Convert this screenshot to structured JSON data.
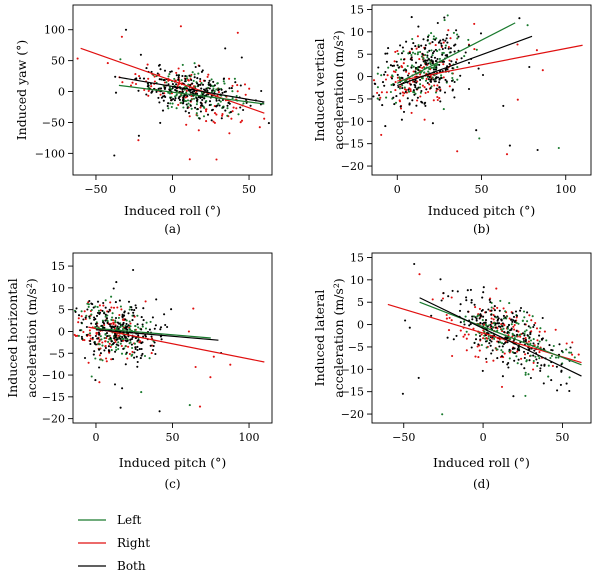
{
  "colors": {
    "Left": "#1a7a2e",
    "Right": "#e01010",
    "Both": "#000000"
  },
  "legend": [
    {
      "name": "Left",
      "color": "#1a7a2e"
    },
    {
      "name": "Right",
      "color": "#e01010"
    },
    {
      "name": "Both",
      "color": "#000000"
    }
  ],
  "chart_data": [
    {
      "type": "scatter",
      "panel": "(a)",
      "xlabel": "Induced roll (°)",
      "ylabel_lines": [
        "Induced yaw (°)"
      ],
      "xlim": [
        -65,
        65
      ],
      "ylim": [
        -135,
        140
      ],
      "xticks": [
        -50,
        0,
        50
      ],
      "yticks": [
        -100,
        -50,
        0,
        50,
        100
      ],
      "series": [
        {
          "name": "Left",
          "fit": [
            [
              -35,
              10
            ],
            [
              60,
              -20
            ]
          ],
          "cloud": {
            "cx": 15,
            "cy": -4,
            "sx": 15,
            "sy": 15,
            "slope": -0.3,
            "n": 140,
            "out": 4
          }
        },
        {
          "name": "Right",
          "fit": [
            [
              -60,
              70
            ],
            [
              60,
              -35
            ]
          ],
          "cloud": {
            "cx": 8,
            "cy": 4,
            "sx": 20,
            "sy": 20,
            "slope": -0.6,
            "n": 130,
            "out": 10
          }
        },
        {
          "name": "Both",
          "fit": [
            [
              -35,
              23
            ],
            [
              60,
              -17
            ]
          ],
          "cloud": {
            "cx": 12,
            "cy": 0,
            "sx": 17,
            "sy": 17,
            "slope": -0.4,
            "n": 230,
            "out": 8
          }
        }
      ]
    },
    {
      "type": "scatter",
      "panel": "(b)",
      "xlabel": "Induced pitch (°)",
      "ylabel_lines": [
        "Induced vertical",
        "acceleration (m/s²)"
      ],
      "xlim": [
        -15,
        115
      ],
      "ylim": [
        -22,
        16
      ],
      "xticks": [
        0,
        50,
        100
      ],
      "yticks": [
        -20,
        -15,
        -10,
        -5,
        0,
        5,
        10,
        15
      ],
      "series": [
        {
          "name": "Left",
          "fit": [
            [
              0,
              -1.5
            ],
            [
              70,
              12
            ]
          ],
          "cloud": {
            "cx": 15,
            "cy": 2,
            "sx": 12,
            "sy": 3.5,
            "slope": 0.15,
            "n": 140,
            "out": 4
          }
        },
        {
          "name": "Right",
          "fit": [
            [
              0,
              -1
            ],
            [
              110,
              7
            ]
          ],
          "cloud": {
            "cx": 12,
            "cy": 0.5,
            "sx": 12,
            "sy": 4,
            "slope": 0.07,
            "n": 130,
            "out": 8
          }
        },
        {
          "name": "Both",
          "fit": [
            [
              0,
              -2
            ],
            [
              80,
              9
            ]
          ],
          "cloud": {
            "cx": 15,
            "cy": 1.5,
            "sx": 14,
            "sy": 4,
            "slope": 0.12,
            "n": 230,
            "out": 8
          }
        }
      ]
    },
    {
      "type": "scatter",
      "panel": "(c)",
      "xlabel": "Induced pitch (°)",
      "ylabel_lines": [
        "Induced horizontal",
        "acceleration (m/s²)"
      ],
      "xlim": [
        -15,
        115
      ],
      "ylim": [
        -21,
        18
      ],
      "xticks": [
        0,
        50,
        100
      ],
      "yticks": [
        -20,
        -15,
        -10,
        -5,
        0,
        5,
        10,
        15
      ],
      "series": [
        {
          "name": "Left",
          "fit": [
            [
              0,
              0.7
            ],
            [
              75,
              -1.5
            ]
          ],
          "cloud": {
            "cx": 12,
            "cy": 0,
            "sx": 12,
            "sy": 3,
            "slope": -0.03,
            "n": 140,
            "out": 4
          }
        },
        {
          "name": "Right",
          "fit": [
            [
              -5,
              1
            ],
            [
              110,
              -7
            ]
          ],
          "cloud": {
            "cx": 10,
            "cy": -0.5,
            "sx": 12,
            "sy": 3.5,
            "slope": -0.07,
            "n": 130,
            "out": 8
          }
        },
        {
          "name": "Both",
          "fit": [
            [
              0,
              0.4
            ],
            [
              80,
              -2
            ]
          ],
          "cloud": {
            "cx": 14,
            "cy": 0,
            "sx": 14,
            "sy": 3.5,
            "slope": -0.03,
            "n": 230,
            "out": 10
          }
        }
      ]
    },
    {
      "type": "scatter",
      "panel": "(d)",
      "xlabel": "Induced roll (°)",
      "ylabel_lines": [
        "Induced lateral",
        "acceleration (m/s²)"
      ],
      "xlim": [
        -70,
        68
      ],
      "ylim": [
        -22,
        16
      ],
      "xticks": [
        -50,
        0,
        50
      ],
      "yticks": [
        -20,
        -15,
        -10,
        -5,
        0,
        5,
        10,
        15
      ],
      "series": [
        {
          "name": "Left",
          "fit": [
            [
              -40,
              5
            ],
            [
              62,
              -9
            ]
          ],
          "cloud": {
            "cx": 18,
            "cy": -3,
            "sx": 15,
            "sy": 3,
            "slope": -0.14,
            "n": 140,
            "out": 4
          }
        },
        {
          "name": "Right",
          "fit": [
            [
              -60,
              4.5
            ],
            [
              62,
              -8.5
            ]
          ],
          "cloud": {
            "cx": 10,
            "cy": -2,
            "sx": 18,
            "sy": 3.5,
            "slope": -0.1,
            "n": 130,
            "out": 8
          }
        },
        {
          "name": "Both",
          "fit": [
            [
              -40,
              6
            ],
            [
              62,
              -11.5
            ]
          ],
          "cloud": {
            "cx": 15,
            "cy": -2.5,
            "sx": 17,
            "sy": 3.5,
            "slope": -0.17,
            "n": 230,
            "out": 10
          }
        }
      ]
    }
  ]
}
